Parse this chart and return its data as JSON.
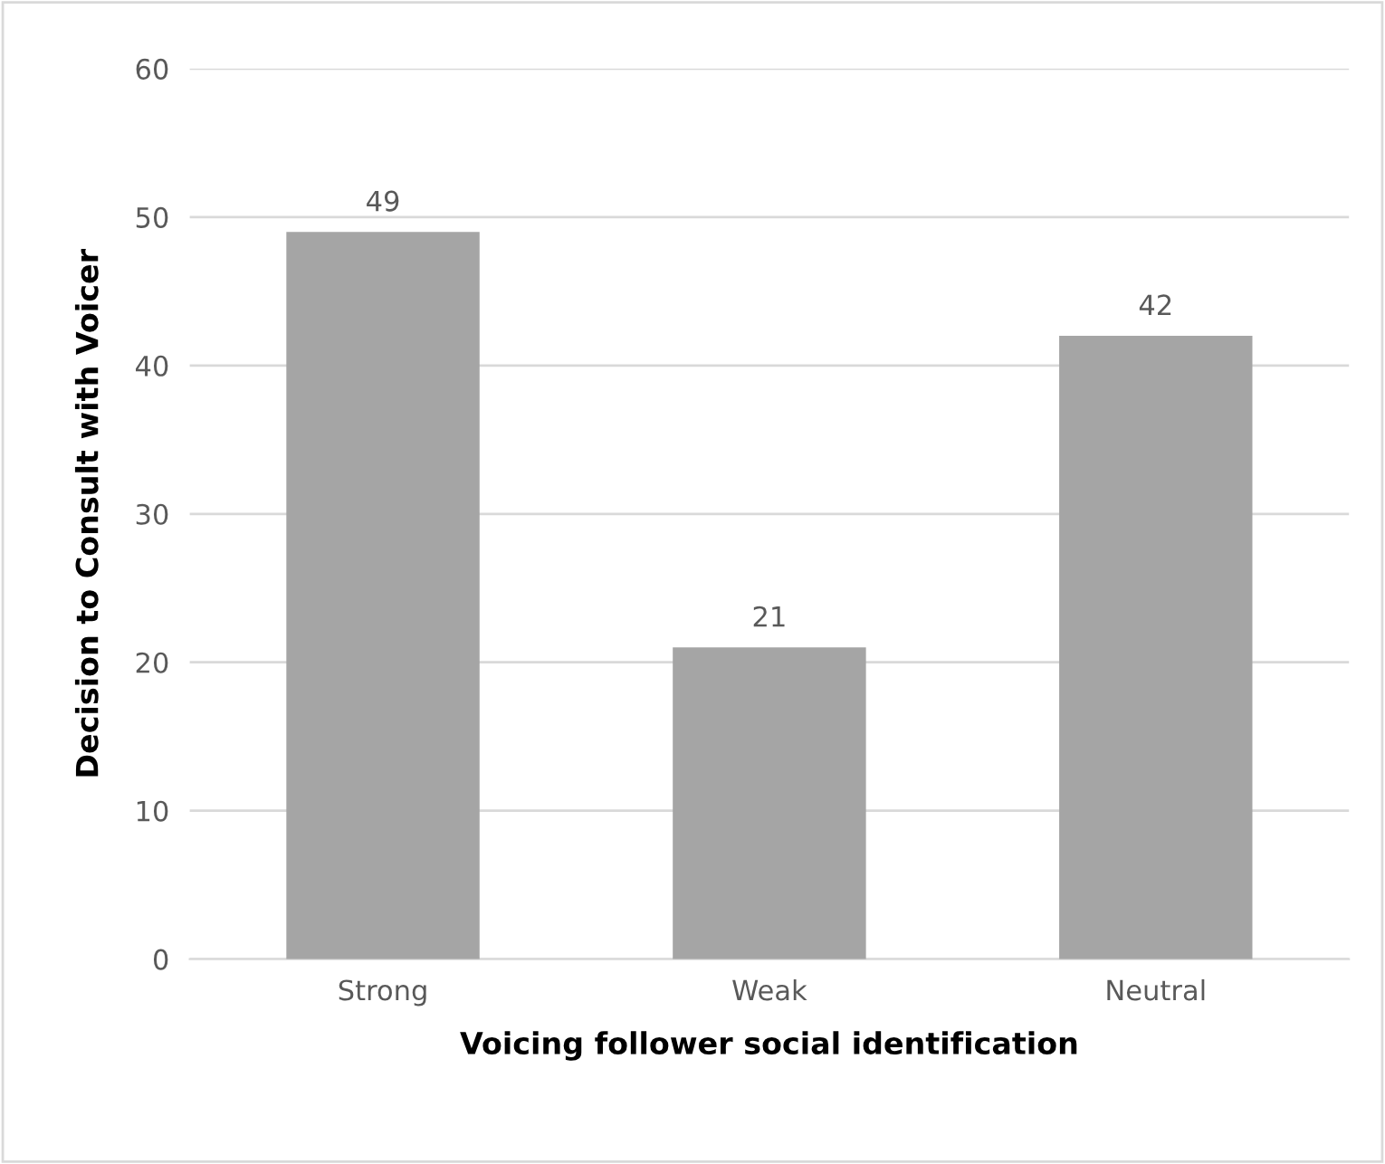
{
  "chart_data": {
    "type": "bar",
    "xlabel": "Voicing follower social identification",
    "ylabel": "Decision to Consult with Voicer",
    "categories": [
      "Strong",
      "Weak",
      "Neutral"
    ],
    "values": [
      49,
      21,
      42
    ],
    "color": "#a5a5a5",
    "data_labels": true,
    "ylim": [
      0,
      60
    ],
    "yticks": [
      0,
      10,
      20,
      30,
      40,
      50,
      60
    ],
    "grid": "y"
  }
}
